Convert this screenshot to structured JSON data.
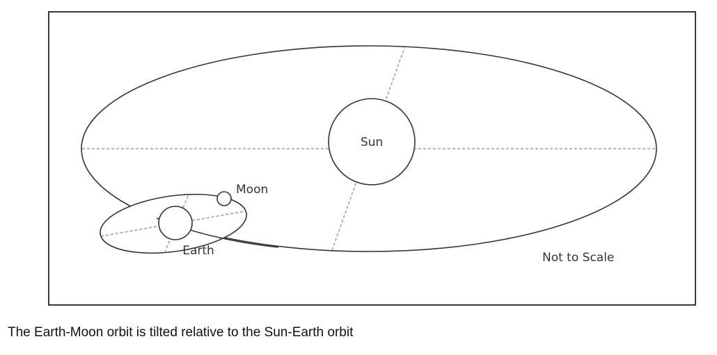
{
  "diagram": {
    "labels": {
      "sun": "Sun",
      "moon": "Moon",
      "earth": "Earth",
      "note": "Not to Scale"
    }
  },
  "caption": "The Earth-Moon orbit is tilted relative to the Sun-Earth orbit"
}
